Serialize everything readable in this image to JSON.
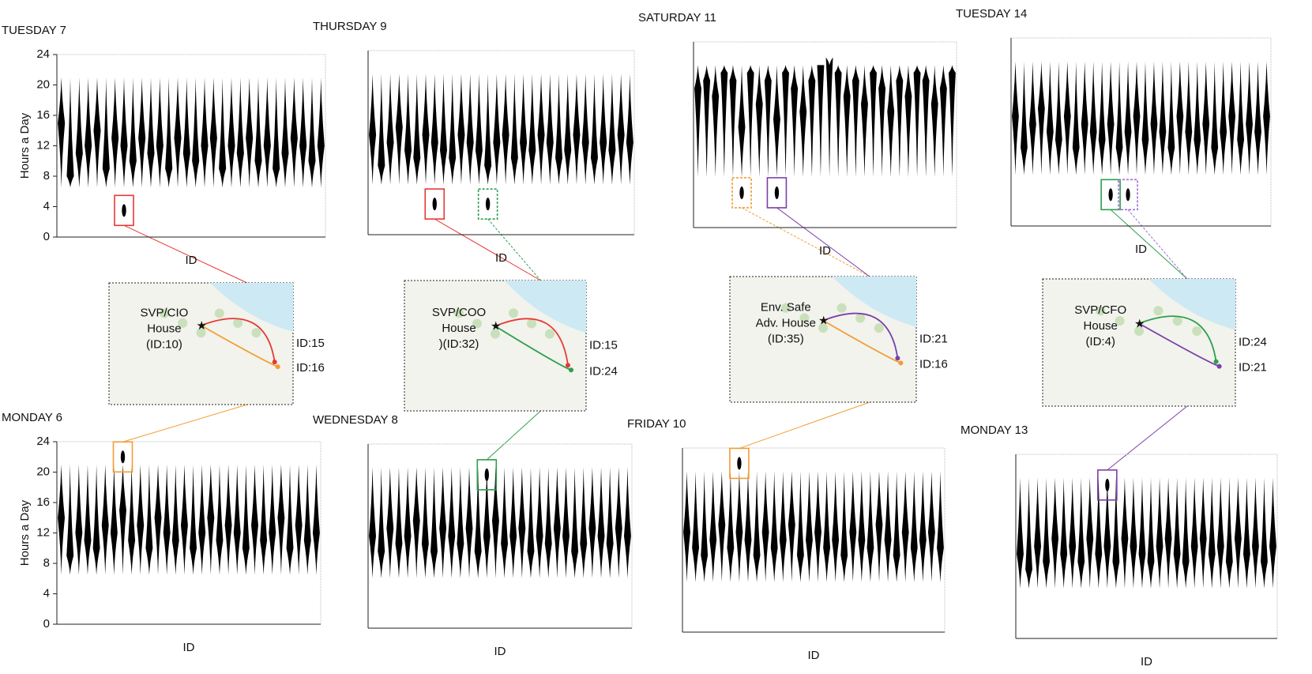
{
  "chart_data": [
    {
      "type": "violin",
      "title": "TUESDAY 7",
      "ylabel": "Hours a Day",
      "xlabel": "ID",
      "ylim": [
        0,
        24
      ],
      "yticks": [
        0,
        4,
        8,
        12,
        16,
        20,
        24
      ],
      "color": "#000000",
      "values": [
        15,
        8,
        11,
        12,
        14,
        9,
        13,
        12,
        10,
        13,
        11,
        12,
        9,
        13,
        11,
        10,
        12,
        13,
        9,
        12,
        11,
        13,
        10,
        12,
        9,
        11,
        13,
        12,
        10,
        12
      ],
      "highlights": [
        {
          "index": 7,
          "value": 3.5,
          "color": "#e53935"
        }
      ]
    },
    {
      "type": "violin",
      "title": "THURSDAY 9",
      "xlabel": "ID",
      "ylim": [
        0,
        24
      ],
      "color": "#000000",
      "values": [
        13,
        9,
        12,
        14,
        11,
        10,
        13,
        12,
        11,
        10,
        13,
        12,
        11,
        9,
        12,
        13,
        10,
        12,
        11,
        13,
        12,
        10,
        11,
        13,
        12,
        10,
        12,
        11,
        13,
        12
      ],
      "highlights": [
        {
          "index": 7,
          "value": 4,
          "color": "#e53935"
        },
        {
          "index": 13,
          "value": 4,
          "color": "#2e9e4f",
          "dashed": true
        }
      ]
    },
    {
      "type": "violin",
      "title": "SATURDAY 11",
      "xlabel": "ID",
      "ylim": [
        0,
        24
      ],
      "color": "#000000",
      "values": [
        18,
        19,
        17,
        20,
        19,
        13,
        20,
        16,
        19,
        14,
        20,
        18,
        15,
        19,
        21,
        22,
        20,
        17,
        19,
        16,
        20,
        18,
        15,
        19,
        17,
        20,
        19,
        16,
        18,
        20
      ],
      "highlights": [
        {
          "index": 5,
          "value": 4.5,
          "color": "#f39c33",
          "dashed": true
        },
        {
          "index": 9,
          "value": 4.5,
          "color": "#7b3fa8"
        }
      ]
    },
    {
      "type": "violin",
      "title": "TUESDAY 14",
      "xlabel": "ID",
      "ylim": [
        0,
        24
      ],
      "color": "#000000",
      "values": [
        14,
        10,
        13,
        15,
        12,
        11,
        14,
        10,
        13,
        12,
        11,
        13,
        10,
        12,
        14,
        11,
        13,
        12,
        10,
        14,
        12,
        11,
        13,
        10,
        12,
        14,
        11,
        13,
        12,
        14
      ],
      "highlights": [
        {
          "index": 11,
          "value": 4,
          "color": "#2e9e4f"
        },
        {
          "index": 13,
          "value": 4,
          "color": "#9b6fd0",
          "dashed": true
        }
      ]
    },
    {
      "type": "violin",
      "title": "MONDAY 6",
      "ylabel": "Hours a Day",
      "xlabel": "ID",
      "ylim": [
        0,
        24
      ],
      "yticks": [
        0,
        4,
        8,
        12,
        16,
        20,
        24
      ],
      "color": "#000000",
      "values": [
        14,
        9,
        12,
        11,
        10,
        13,
        12,
        15,
        11,
        13,
        10,
        14,
        12,
        11,
        13,
        10,
        12,
        14,
        11,
        13,
        12,
        10,
        13,
        11,
        12,
        14,
        10,
        13,
        11,
        12
      ],
      "highlights": [
        {
          "index": 7,
          "value": 22,
          "color": "#f39c33"
        }
      ]
    },
    {
      "type": "violin",
      "title": "WEDNESDAY 8",
      "xlabel": "ID",
      "ylim": [
        0,
        24
      ],
      "color": "#000000",
      "values": [
        12,
        10,
        13,
        11,
        12,
        14,
        11,
        10,
        13,
        12,
        11,
        13,
        10,
        12,
        14,
        11,
        12,
        13,
        10,
        12,
        11,
        13,
        12,
        10,
        11,
        13,
        12,
        11,
        13,
        12
      ],
      "highlights": [
        {
          "index": 13,
          "value": 20,
          "color": "#2e9e4f"
        }
      ]
    },
    {
      "type": "violin",
      "title": "FRIDAY 10",
      "xlabel": "ID",
      "ylim": [
        0,
        24
      ],
      "color": "#000000",
      "values": [
        13,
        11,
        10,
        12,
        14,
        11,
        13,
        12,
        10,
        13,
        11,
        12,
        14,
        10,
        12,
        13,
        11,
        12,
        10,
        13,
        12,
        11,
        14,
        12,
        10,
        13,
        11,
        12,
        13,
        11
      ],
      "highlights": [
        {
          "index": 6,
          "value": 22,
          "color": "#f39c33"
        }
      ]
    },
    {
      "type": "violin",
      "title": "MONDAY 13",
      "xlabel": "ID",
      "ylim": [
        0,
        24
      ],
      "color": "#000000",
      "values": [
        11,
        9,
        12,
        10,
        13,
        11,
        12,
        10,
        13,
        11,
        12,
        10,
        13,
        12,
        11,
        10,
        12,
        13,
        11,
        10,
        12,
        13,
        11,
        12,
        10,
        13,
        11,
        12,
        10,
        12
      ],
      "highlights": [
        {
          "index": 10,
          "value": 20,
          "color": "#7b3fa8"
        }
      ]
    }
  ],
  "maps": [
    {
      "house": [
        "SVP/CIO",
        "House",
        "(ID:10)"
      ],
      "house_color": "#6a3fb0",
      "ids": [
        {
          "label": "ID:15",
          "color": "#e53935"
        },
        {
          "label": "ID:16",
          "color": "#f39c33"
        }
      ]
    },
    {
      "house": [
        "SVP/COO",
        "House",
        ")(ID:32)"
      ],
      "house_color": "#3a4bb0",
      "ids": [
        {
          "label": "ID:15",
          "color": "#e53935"
        },
        {
          "label": "ID:24",
          "color": "#2e9e4f"
        }
      ]
    },
    {
      "house": [
        "Env. Safe",
        "Adv. House",
        "(ID:35)"
      ],
      "house_color": "#e0288a",
      "ids": [
        {
          "label": "ID:21",
          "color": "#7b3fa8"
        },
        {
          "label": "ID:16",
          "color": "#f39c33"
        }
      ]
    },
    {
      "house": [
        "SVP/CFO",
        "House",
        "(ID:4)"
      ],
      "house_color": "#7a4a1a",
      "ids": [
        {
          "label": "ID:24",
          "color": "#2e9e4f"
        },
        {
          "label": "ID:21",
          "color": "#7b3fa8"
        }
      ]
    }
  ]
}
